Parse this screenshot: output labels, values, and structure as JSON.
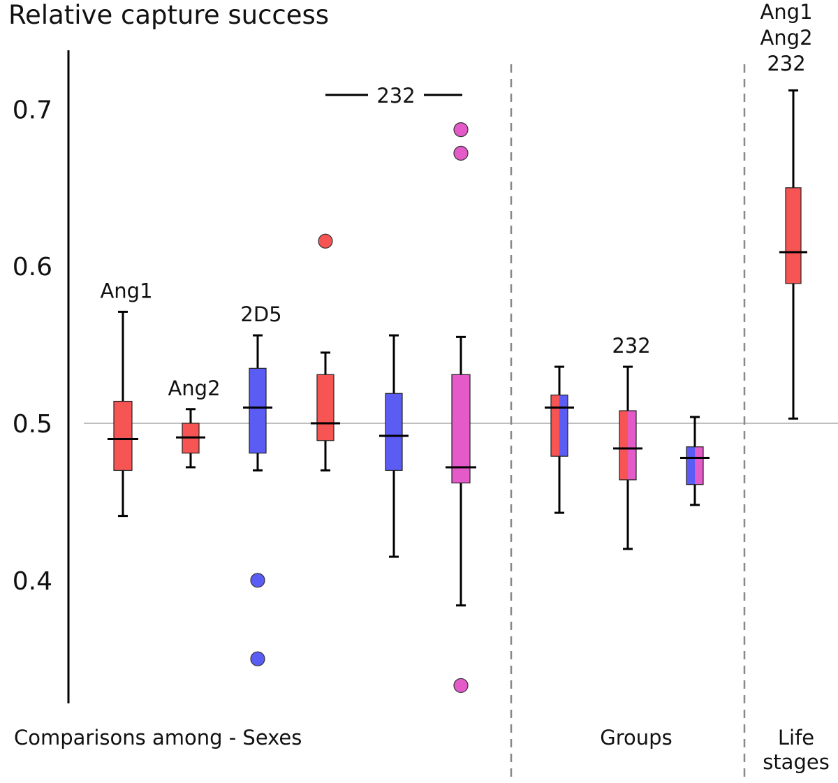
{
  "chart_data": {
    "type": "box",
    "title": "Relative capture success",
    "ylim": [
      0.33,
      0.735
    ],
    "yticks": [
      0.4,
      0.5,
      0.6,
      0.7
    ],
    "reference_line": 0.5,
    "colors": {
      "red": "#f75454",
      "blue": "#5a5cf3",
      "magenta": "#e35ac8"
    },
    "sections": [
      "Comparisons among - Sexes",
      "Groups",
      "Life stages"
    ],
    "boxes": [
      {
        "id": "sexes-1",
        "section": "Comparisons among - Sexes",
        "fill": [
          "red"
        ],
        "whisker_low": 0.441,
        "q1": 0.47,
        "median": 0.49,
        "q3": 0.514,
        "whisker_high": 0.571,
        "outliers": [],
        "label": "Ang1"
      },
      {
        "id": "sexes-2",
        "section": "Comparisons among - Sexes",
        "fill": [
          "red"
        ],
        "whisker_low": 0.472,
        "q1": 0.481,
        "median": 0.491,
        "q3": 0.5,
        "whisker_high": 0.509,
        "outliers": [],
        "label": "Ang2"
      },
      {
        "id": "sexes-3",
        "section": "Comparisons among - Sexes",
        "fill": [
          "blue"
        ],
        "whisker_low": 0.47,
        "q1": 0.481,
        "median": 0.51,
        "q3": 0.535,
        "whisker_high": 0.556,
        "outliers": [
          0.4,
          0.35
        ],
        "label": "2D5"
      },
      {
        "id": "sexes-4",
        "section": "Comparisons among - Sexes",
        "fill": [
          "red"
        ],
        "whisker_low": 0.47,
        "q1": 0.489,
        "median": 0.5,
        "q3": 0.531,
        "whisker_high": 0.545,
        "outliers": [
          0.616
        ],
        "label": ""
      },
      {
        "id": "sexes-5",
        "section": "Comparisons among - Sexes",
        "fill": [
          "blue"
        ],
        "whisker_low": 0.415,
        "q1": 0.47,
        "median": 0.492,
        "q3": 0.519,
        "whisker_high": 0.556,
        "outliers": [],
        "label": ""
      },
      {
        "id": "sexes-6",
        "section": "Comparisons among - Sexes",
        "fill": [
          "magenta"
        ],
        "whisker_low": 0.384,
        "q1": 0.462,
        "median": 0.472,
        "q3": 0.531,
        "whisker_high": 0.555,
        "outliers": [
          0.687,
          0.672,
          0.333
        ],
        "label": ""
      },
      {
        "id": "groups-1",
        "section": "Groups",
        "fill": [
          "red",
          "blue"
        ],
        "whisker_low": 0.443,
        "q1": 0.479,
        "median": 0.51,
        "q3": 0.518,
        "whisker_high": 0.536,
        "outliers": [],
        "label": ""
      },
      {
        "id": "groups-2",
        "section": "Groups",
        "fill": [
          "red",
          "magenta"
        ],
        "whisker_low": 0.42,
        "q1": 0.464,
        "median": 0.484,
        "q3": 0.508,
        "whisker_high": 0.536,
        "outliers": [],
        "label": "232"
      },
      {
        "id": "groups-3",
        "section": "Groups",
        "fill": [
          "blue",
          "magenta"
        ],
        "whisker_low": 0.448,
        "q1": 0.461,
        "median": 0.478,
        "q3": 0.485,
        "whisker_high": 0.504,
        "outliers": [],
        "label": ""
      },
      {
        "id": "life-1",
        "section": "Life stages",
        "fill": [
          "red"
        ],
        "whisker_low": 0.503,
        "q1": 0.589,
        "median": 0.609,
        "q3": 0.65,
        "whisker_high": 0.712,
        "outliers": [],
        "label_lines": [
          "Ang1",
          "Ang2",
          "232"
        ]
      }
    ],
    "bracket": {
      "label": "232",
      "from_box": "sexes-4",
      "to_box": "sexes-6",
      "y": 0.71
    }
  }
}
